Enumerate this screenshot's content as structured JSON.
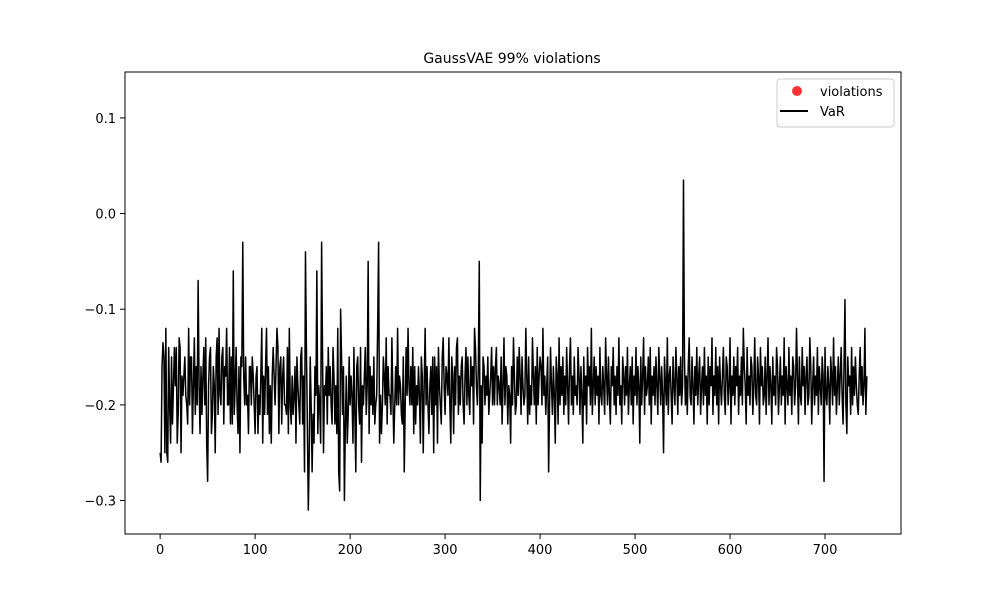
{
  "chart_data": {
    "type": "scatter",
    "title": "GaussVAE 99% violations",
    "xlabel": "",
    "ylabel": "",
    "xlim": [
      -37,
      780
    ],
    "ylim": [
      -0.335,
      0.148
    ],
    "x_ticks": [
      0,
      100,
      200,
      300,
      400,
      500,
      600,
      700
    ],
    "y_ticks": [
      -0.3,
      -0.2,
      -0.1,
      0.0,
      0.1
    ],
    "x_tick_labels": [
      "0",
      "100",
      "200",
      "300",
      "400",
      "500",
      "600",
      "700"
    ],
    "y_tick_labels": [
      "−0.3",
      "−0.2",
      "−0.1",
      "0.0",
      "0.1"
    ],
    "grid": false,
    "legend_position": "top-right",
    "legend": [
      {
        "label": "violations",
        "marker": "circle",
        "color": "#ff0000"
      },
      {
        "label": "VaR",
        "marker": "line",
        "color": "#000000"
      }
    ],
    "series": [
      {
        "name": "violations",
        "type": "line",
        "color": "#000000",
        "x_start": 0,
        "x_step": 1,
        "values": [
          -0.25,
          -0.26,
          -0.16,
          -0.135,
          -0.15,
          -0.25,
          -0.12,
          -0.25,
          -0.26,
          -0.14,
          -0.2,
          -0.24,
          -0.15,
          -0.22,
          -0.18,
          -0.14,
          -0.18,
          -0.14,
          -0.24,
          -0.21,
          -0.13,
          -0.14,
          -0.25,
          -0.17,
          -0.19,
          -0.17,
          -0.15,
          -0.19,
          -0.2,
          -0.22,
          -0.12,
          -0.2,
          -0.15,
          -0.15,
          -0.23,
          -0.18,
          -0.13,
          -0.21,
          -0.16,
          -0.2,
          -0.07,
          -0.18,
          -0.23,
          -0.16,
          -0.21,
          -0.17,
          -0.14,
          -0.2,
          -0.13,
          -0.24,
          -0.28,
          -0.18,
          -0.15,
          -0.14,
          -0.23,
          -0.21,
          -0.16,
          -0.18,
          -0.25,
          -0.15,
          -0.13,
          -0.21,
          -0.12,
          -0.19,
          -0.2,
          -0.15,
          -0.14,
          -0.22,
          -0.16,
          -0.17,
          -0.12,
          -0.2,
          -0.2,
          -0.14,
          -0.22,
          -0.15,
          -0.22,
          -0.06,
          -0.21,
          -0.18,
          -0.14,
          -0.2,
          -0.23,
          -0.16,
          -0.25,
          -0.15,
          -0.16,
          -0.03,
          -0.17,
          -0.2,
          -0.15,
          -0.2,
          -0.19,
          -0.23,
          -0.16,
          -0.16,
          -0.2,
          -0.15,
          -0.17,
          -0.2,
          -0.23,
          -0.17,
          -0.16,
          -0.23,
          -0.19,
          -0.21,
          -0.17,
          -0.12,
          -0.24,
          -0.17,
          -0.21,
          -0.16,
          -0.12,
          -0.21,
          -0.16,
          -0.23,
          -0.18,
          -0.24,
          -0.17,
          -0.14,
          -0.17,
          -0.2,
          -0.16,
          -0.12,
          -0.14,
          -0.23,
          -0.16,
          -0.15,
          -0.22,
          -0.17,
          -0.15,
          -0.2,
          -0.2,
          -0.21,
          -0.14,
          -0.23,
          -0.12,
          -0.2,
          -0.22,
          -0.17,
          -0.21,
          -0.19,
          -0.16,
          -0.24,
          -0.15,
          -0.18,
          -0.2,
          -0.22,
          -0.15,
          -0.14,
          -0.22,
          -0.17,
          -0.27,
          -0.04,
          -0.14,
          -0.22,
          -0.31,
          -0.25,
          -0.15,
          -0.2,
          -0.27,
          -0.21,
          -0.24,
          -0.16,
          -0.19,
          -0.06,
          -0.23,
          -0.18,
          -0.2,
          -0.24,
          -0.03,
          -0.15,
          -0.25,
          -0.18,
          -0.19,
          -0.16,
          -0.22,
          -0.14,
          -0.19,
          -0.16,
          -0.2,
          -0.22,
          -0.14,
          -0.17,
          -0.22,
          -0.18,
          -0.23,
          -0.12,
          -0.27,
          -0.29,
          -0.1,
          -0.15,
          -0.21,
          -0.16,
          -0.3,
          -0.22,
          -0.17,
          -0.24,
          -0.21,
          -0.15,
          -0.2,
          -0.17,
          -0.19,
          -0.24,
          -0.14,
          -0.21,
          -0.27,
          -0.16,
          -0.15,
          -0.2,
          -0.22,
          -0.14,
          -0.26,
          -0.18,
          -0.2,
          -0.17,
          -0.14,
          -0.21,
          -0.18,
          -0.05,
          -0.23,
          -0.16,
          -0.2,
          -0.17,
          -0.21,
          -0.15,
          -0.22,
          -0.2,
          -0.19,
          -0.12,
          -0.03,
          -0.24,
          -0.19,
          -0.23,
          -0.2,
          -0.15,
          -0.17,
          -0.2,
          -0.13,
          -0.22,
          -0.16,
          -0.19,
          -0.19,
          -0.21,
          -0.13,
          -0.19,
          -0.24,
          -0.2,
          -0.16,
          -0.2,
          -0.12,
          -0.2,
          -0.17,
          -0.18,
          -0.21,
          -0.22,
          -0.15,
          -0.27,
          -0.2,
          -0.14,
          -0.19,
          -0.12,
          -0.18,
          -0.2,
          -0.16,
          -0.2,
          -0.14,
          -0.23,
          -0.16,
          -0.22,
          -0.18,
          -0.2,
          -0.16,
          -0.19,
          -0.24,
          -0.15,
          -0.17,
          -0.25,
          -0.18,
          -0.12,
          -0.2,
          -0.16,
          -0.2,
          -0.23,
          -0.18,
          -0.16,
          -0.21,
          -0.15,
          -0.25,
          -0.15,
          -0.2,
          -0.16,
          -0.24,
          -0.14,
          -0.18,
          -0.2,
          -0.22,
          -0.15,
          -0.13,
          -0.18,
          -0.21,
          -0.16,
          -0.17,
          -0.19,
          -0.13,
          -0.2,
          -0.24,
          -0.15,
          -0.17,
          -0.23,
          -0.16,
          -0.2,
          -0.14,
          -0.13,
          -0.21,
          -0.17,
          -0.2,
          -0.16,
          -0.15,
          -0.2,
          -0.22,
          -0.17,
          -0.14,
          -0.2,
          -0.15,
          -0.19,
          -0.21,
          -0.15,
          -0.18,
          -0.16,
          -0.22,
          -0.12,
          -0.14,
          -0.18,
          -0.2,
          -0.16,
          -0.05,
          -0.3,
          -0.18,
          -0.24,
          -0.15,
          -0.16,
          -0.2,
          -0.17,
          -0.19,
          -0.15,
          -0.21,
          -0.19,
          -0.17,
          -0.14,
          -0.2,
          -0.16,
          -0.2,
          -0.16,
          -0.14,
          -0.2,
          -0.17,
          -0.18,
          -0.2,
          -0.15,
          -0.22,
          -0.18,
          -0.13,
          -0.2,
          -0.16,
          -0.17,
          -0.22,
          -0.18,
          -0.19,
          -0.24,
          -0.16,
          -0.2,
          -0.13,
          -0.17,
          -0.21,
          -0.2,
          -0.15,
          -0.19,
          -0.14,
          -0.17,
          -0.21,
          -0.15,
          -0.18,
          -0.2,
          -0.19,
          -0.12,
          -0.17,
          -0.22,
          -0.15,
          -0.21,
          -0.18,
          -0.2,
          -0.13,
          -0.17,
          -0.2,
          -0.16,
          -0.22,
          -0.14,
          -0.2,
          -0.17,
          -0.15,
          -0.16,
          -0.2,
          -0.12,
          -0.19,
          -0.17,
          -0.21,
          -0.18,
          -0.15,
          -0.27,
          -0.2,
          -0.14,
          -0.18,
          -0.21,
          -0.16,
          -0.19,
          -0.24,
          -0.15,
          -0.17,
          -0.22,
          -0.13,
          -0.2,
          -0.16,
          -0.19,
          -0.15,
          -0.21,
          -0.17,
          -0.2,
          -0.14,
          -0.18,
          -0.22,
          -0.16,
          -0.13,
          -0.2,
          -0.17,
          -0.21,
          -0.15,
          -0.19,
          -0.18,
          -0.2,
          -0.14,
          -0.17,
          -0.21,
          -0.16,
          -0.19,
          -0.24,
          -0.15,
          -0.2,
          -0.17,
          -0.22,
          -0.14,
          -0.18,
          -0.16,
          -0.2,
          -0.12,
          -0.21,
          -0.18,
          -0.15,
          -0.2,
          -0.16,
          -0.19,
          -0.17,
          -0.22,
          -0.14,
          -0.19,
          -0.2,
          -0.16,
          -0.18,
          -0.21,
          -0.13,
          -0.17,
          -0.2,
          -0.15,
          -0.19,
          -0.22,
          -0.16,
          -0.18,
          -0.14,
          -0.2,
          -0.17,
          -0.21,
          -0.16,
          -0.19,
          -0.13,
          -0.2,
          -0.18,
          -0.22,
          -0.15,
          -0.17,
          -0.2,
          -0.16,
          -0.19,
          -0.14,
          -0.21,
          -0.18,
          -0.16,
          -0.2,
          -0.15,
          -0.22,
          -0.17,
          -0.19,
          -0.14,
          -0.2,
          -0.16,
          -0.18,
          -0.24,
          -0.15,
          -0.2,
          -0.17,
          -0.13,
          -0.21,
          -0.16,
          -0.19,
          -0.18,
          -0.15,
          -0.2,
          -0.14,
          -0.22,
          -0.17,
          -0.19,
          -0.16,
          -0.2,
          -0.15,
          -0.18,
          -0.21,
          -0.14,
          -0.17,
          -0.2,
          -0.16,
          -0.19,
          -0.25,
          -0.15,
          -0.18,
          -0.2,
          -0.13,
          -0.21,
          -0.17,
          -0.16,
          -0.19,
          -0.22,
          -0.15,
          -0.18,
          -0.2,
          -0.14,
          -0.17,
          -0.21,
          -0.16,
          -0.19,
          -0.15,
          -0.2,
          -0.18,
          0.035,
          -0.15,
          -0.2,
          -0.17,
          -0.21,
          -0.16,
          -0.13,
          -0.19,
          -0.2,
          -0.15,
          -0.18,
          -0.22,
          -0.16,
          -0.19,
          -0.14,
          -0.2,
          -0.17,
          -0.15,
          -0.21,
          -0.18,
          -0.16,
          -0.2,
          -0.14,
          -0.19,
          -0.17,
          -0.22,
          -0.15,
          -0.2,
          -0.16,
          -0.18,
          -0.13,
          -0.21,
          -0.17,
          -0.19,
          -0.14,
          -0.2,
          -0.16,
          -0.22,
          -0.15,
          -0.18,
          -0.2,
          -0.17,
          -0.14,
          -0.19,
          -0.21,
          -0.15,
          -0.16,
          -0.2,
          -0.18,
          -0.13,
          -0.22,
          -0.17,
          -0.19,
          -0.15,
          -0.2,
          -0.16,
          -0.18,
          -0.14,
          -0.21,
          -0.17,
          -0.19,
          -0.15,
          -0.2,
          -0.12,
          -0.16,
          -0.18,
          -0.22,
          -0.14,
          -0.19,
          -0.17,
          -0.2,
          -0.15,
          -0.16,
          -0.21,
          -0.18,
          -0.13,
          -0.19,
          -0.2,
          -0.15,
          -0.17,
          -0.22,
          -0.14,
          -0.18,
          -0.16,
          -0.2,
          -0.19,
          -0.15,
          -0.21,
          -0.17,
          -0.13,
          -0.2,
          -0.16,
          -0.18,
          -0.22,
          -0.15,
          -0.19,
          -0.17,
          -0.2,
          -0.14,
          -0.16,
          -0.21,
          -0.18,
          -0.15,
          -0.2,
          -0.17,
          -0.19,
          -0.13,
          -0.22,
          -0.16,
          -0.18,
          -0.2,
          -0.14,
          -0.19,
          -0.17,
          -0.21,
          -0.15,
          -0.16,
          -0.2,
          -0.18,
          -0.12,
          -0.17,
          -0.22,
          -0.15,
          -0.19,
          -0.2,
          -0.14,
          -0.18,
          -0.16,
          -0.21,
          -0.17,
          -0.15,
          -0.2,
          -0.19,
          -0.13,
          -0.16,
          -0.22,
          -0.18,
          -0.15,
          -0.2,
          -0.17,
          -0.19,
          -0.14,
          -0.21,
          -0.16,
          -0.18,
          -0.2,
          -0.15,
          -0.17,
          -0.28,
          -0.14,
          -0.19,
          -0.2,
          -0.16,
          -0.18,
          -0.22,
          -0.15,
          -0.17,
          -0.2,
          -0.13,
          -0.19,
          -0.16,
          -0.21,
          -0.18,
          -0.15,
          -0.2,
          -0.17,
          -0.14,
          -0.19,
          -0.22,
          -0.16,
          -0.09,
          -0.2,
          -0.23,
          -0.15,
          -0.18,
          -0.17,
          -0.21,
          -0.14,
          -0.2,
          -0.16,
          -0.19,
          -0.15,
          -0.18,
          -0.2,
          -0.21,
          -0.17,
          -0.14,
          -0.19,
          -0.16,
          -0.2,
          -0.18,
          -0.12,
          -0.21,
          -0.17
        ]
      }
    ]
  }
}
